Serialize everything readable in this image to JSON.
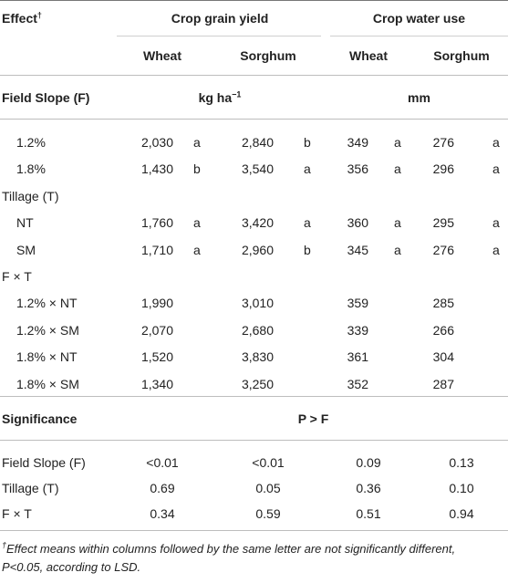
{
  "header": {
    "effect_label": "Effect",
    "effect_mark": "†",
    "group1": "Crop grain yield",
    "group2": "Crop water use",
    "sub_wheat1": "Wheat",
    "sub_sorghum1": "Sorghum",
    "sub_wheat2": "Wheat",
    "sub_sorghum2": "Sorghum"
  },
  "units_row": {
    "label": "Field Slope (F)",
    "yield_unit_base": "kg ha",
    "yield_unit_exp": "−1",
    "water_unit": "mm"
  },
  "rows": [
    {
      "label": "1.2%",
      "indent": true,
      "wy": "2,030",
      "wyl": "a",
      "sy": "2,840",
      "syl": "b",
      "ww": "349",
      "wwl": "a",
      "sw": "276",
      "swl": "a"
    },
    {
      "label": "1.8%",
      "indent": true,
      "wy": "1,430",
      "wyl": "b",
      "sy": "3,540",
      "syl": "a",
      "ww": "356",
      "wwl": "a",
      "sw": "296",
      "swl": "a"
    },
    {
      "label": "Tillage (T)",
      "indent": false,
      "wy": "",
      "wyl": "",
      "sy": "",
      "syl": "",
      "ww": "",
      "wwl": "",
      "sw": "",
      "swl": ""
    },
    {
      "label": "NT",
      "indent": true,
      "wy": "1,760",
      "wyl": "a",
      "sy": "3,420",
      "syl": "a",
      "ww": "360",
      "wwl": "a",
      "sw": "295",
      "swl": "a"
    },
    {
      "label": "SM",
      "indent": true,
      "wy": "1,710",
      "wyl": "a",
      "sy": "2,960",
      "syl": "b",
      "ww": "345",
      "wwl": "a",
      "sw": "276",
      "swl": "a"
    },
    {
      "label": "F × T",
      "indent": false,
      "wy": "",
      "wyl": "",
      "sy": "",
      "syl": "",
      "ww": "",
      "wwl": "",
      "sw": "",
      "swl": ""
    },
    {
      "label": "1.2% × NT",
      "indent": true,
      "wy": "1,990",
      "wyl": "",
      "sy": "3,010",
      "syl": "",
      "ww": "359",
      "wwl": "",
      "sw": "285",
      "swl": ""
    },
    {
      "label": "1.2% × SM",
      "indent": true,
      "wy": "2,070",
      "wyl": "",
      "sy": "2,680",
      "syl": "",
      "ww": "339",
      "wwl": "",
      "sw": "266",
      "swl": ""
    },
    {
      "label": "1.8% × NT",
      "indent": true,
      "wy": "1,520",
      "wyl": "",
      "sy": "3,830",
      "syl": "",
      "ww": "361",
      "wwl": "",
      "sw": "304",
      "swl": ""
    },
    {
      "label": "1.8% × SM",
      "indent": true,
      "wy": "1,340",
      "wyl": "",
      "sy": "3,250",
      "syl": "",
      "ww": "352",
      "wwl": "",
      "sw": "287",
      "swl": ""
    }
  ],
  "significance": {
    "label": "Significance",
    "header": "P > F",
    "rows": [
      {
        "label": "Field Slope (F)",
        "v1": "<0.01",
        "v2": "<0.01",
        "v3": "0.09",
        "v4": "0.13"
      },
      {
        "label": "Tillage (T)",
        "v1": "0.69",
        "v2": "0.05",
        "v3": "0.36",
        "v4": "0.10"
      },
      {
        "label": "F × T",
        "v1": "0.34",
        "v2": "0.59",
        "v3": "0.51",
        "v4": "0.94"
      }
    ]
  },
  "footnote": {
    "mark": "†",
    "text_line1": "Effect means within columns followed by the same letter are not significantly different,",
    "text_line2": "P<0.05, according to LSD."
  }
}
